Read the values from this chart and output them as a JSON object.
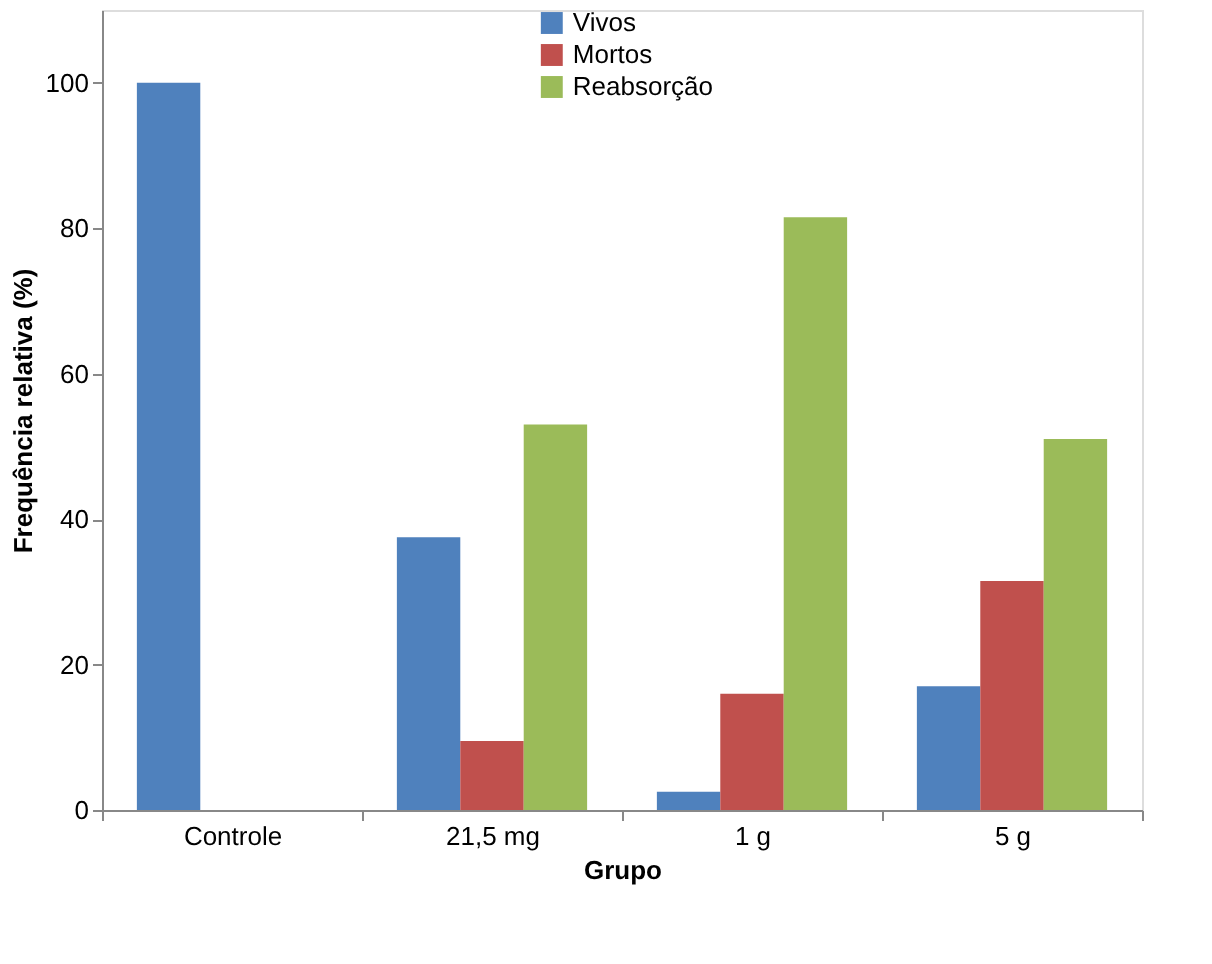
{
  "chart_data": {
    "type": "bar",
    "xlabel": "Grupo",
    "ylabel": "Frequência relativa (%)",
    "categories": [
      "Controle",
      "21,5 mg",
      "1 g",
      "5 g"
    ],
    "series": [
      {
        "name": "Vivos",
        "color": "#4f81bd",
        "values": [
          100,
          37.5,
          2.5,
          17
        ]
      },
      {
        "name": "Mortos",
        "color": "#c0504d",
        "values": [
          0,
          9.5,
          16,
          31.5
        ]
      },
      {
        "name": "Reabsorção",
        "color": "#9bbb59",
        "values": [
          0,
          53,
          81.5,
          51
        ]
      }
    ],
    "ylim": [
      0,
      110
    ],
    "yticks": [
      0,
      20,
      40,
      60,
      80,
      100
    ],
    "grid": false,
    "legend": "top"
  }
}
